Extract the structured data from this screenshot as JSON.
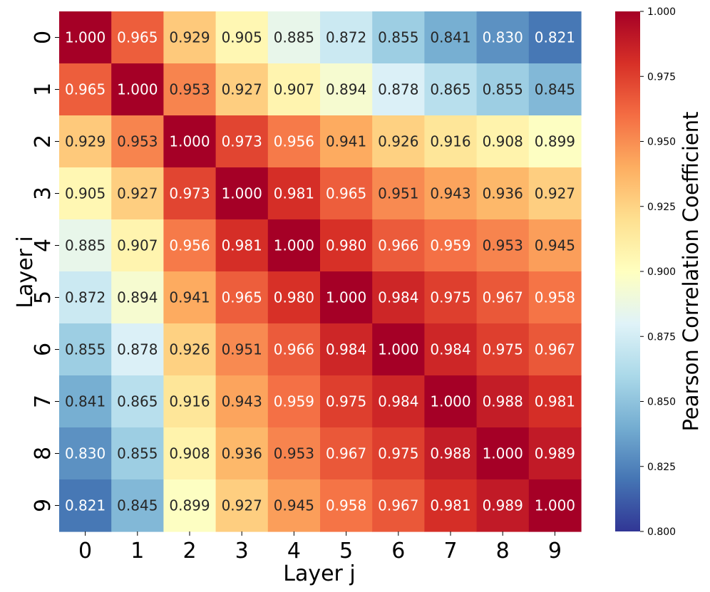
{
  "chart_data": {
    "type": "heatmap",
    "xlabel": "Layer j",
    "ylabel": "Layer i",
    "x_categories": [
      "0",
      "1",
      "2",
      "3",
      "4",
      "5",
      "6",
      "7",
      "8",
      "9"
    ],
    "y_categories": [
      "0",
      "1",
      "2",
      "3",
      "4",
      "5",
      "6",
      "7",
      "8",
      "9"
    ],
    "matrix": [
      [
        1.0,
        0.965,
        0.929,
        0.905,
        0.885,
        0.872,
        0.855,
        0.841,
        0.83,
        0.821
      ],
      [
        0.965,
        1.0,
        0.953,
        0.927,
        0.907,
        0.894,
        0.878,
        0.865,
        0.855,
        0.845
      ],
      [
        0.929,
        0.953,
        1.0,
        0.973,
        0.956,
        0.941,
        0.926,
        0.916,
        0.908,
        0.899
      ],
      [
        0.905,
        0.927,
        0.973,
        1.0,
        0.981,
        0.965,
        0.951,
        0.943,
        0.936,
        0.927
      ],
      [
        0.885,
        0.907,
        0.956,
        0.981,
        1.0,
        0.98,
        0.966,
        0.959,
        0.953,
        0.945
      ],
      [
        0.872,
        0.894,
        0.941,
        0.965,
        0.98,
        1.0,
        0.984,
        0.975,
        0.967,
        0.958
      ],
      [
        0.855,
        0.878,
        0.926,
        0.951,
        0.966,
        0.984,
        1.0,
        0.984,
        0.975,
        0.967
      ],
      [
        0.841,
        0.865,
        0.916,
        0.943,
        0.959,
        0.975,
        0.984,
        1.0,
        0.988,
        0.981
      ],
      [
        0.83,
        0.855,
        0.908,
        0.936,
        0.953,
        0.967,
        0.975,
        0.988,
        1.0,
        0.989
      ],
      [
        0.821,
        0.845,
        0.899,
        0.927,
        0.945,
        0.958,
        0.967,
        0.981,
        0.989,
        1.0
      ]
    ],
    "value_format_decimals": 3,
    "colormap": "RdYlBu_r",
    "vmin": 0.8,
    "vmax": 1.0,
    "colorbar": {
      "label": "Pearson Correlation Coefficient",
      "ticks": [
        "0.800",
        "0.825",
        "0.850",
        "0.875",
        "0.900",
        "0.925",
        "0.950",
        "0.975",
        "1.000"
      ],
      "tick_values": [
        0.8,
        0.825,
        0.85,
        0.875,
        0.9,
        0.925,
        0.95,
        0.975,
        1.0
      ]
    },
    "colormap_stops": [
      "#313695",
      "#4575b4",
      "#74add1",
      "#abd9e9",
      "#e0f3f8",
      "#ffffbf",
      "#fee090",
      "#fdae61",
      "#f46d43",
      "#d73027",
      "#a50026"
    ]
  }
}
